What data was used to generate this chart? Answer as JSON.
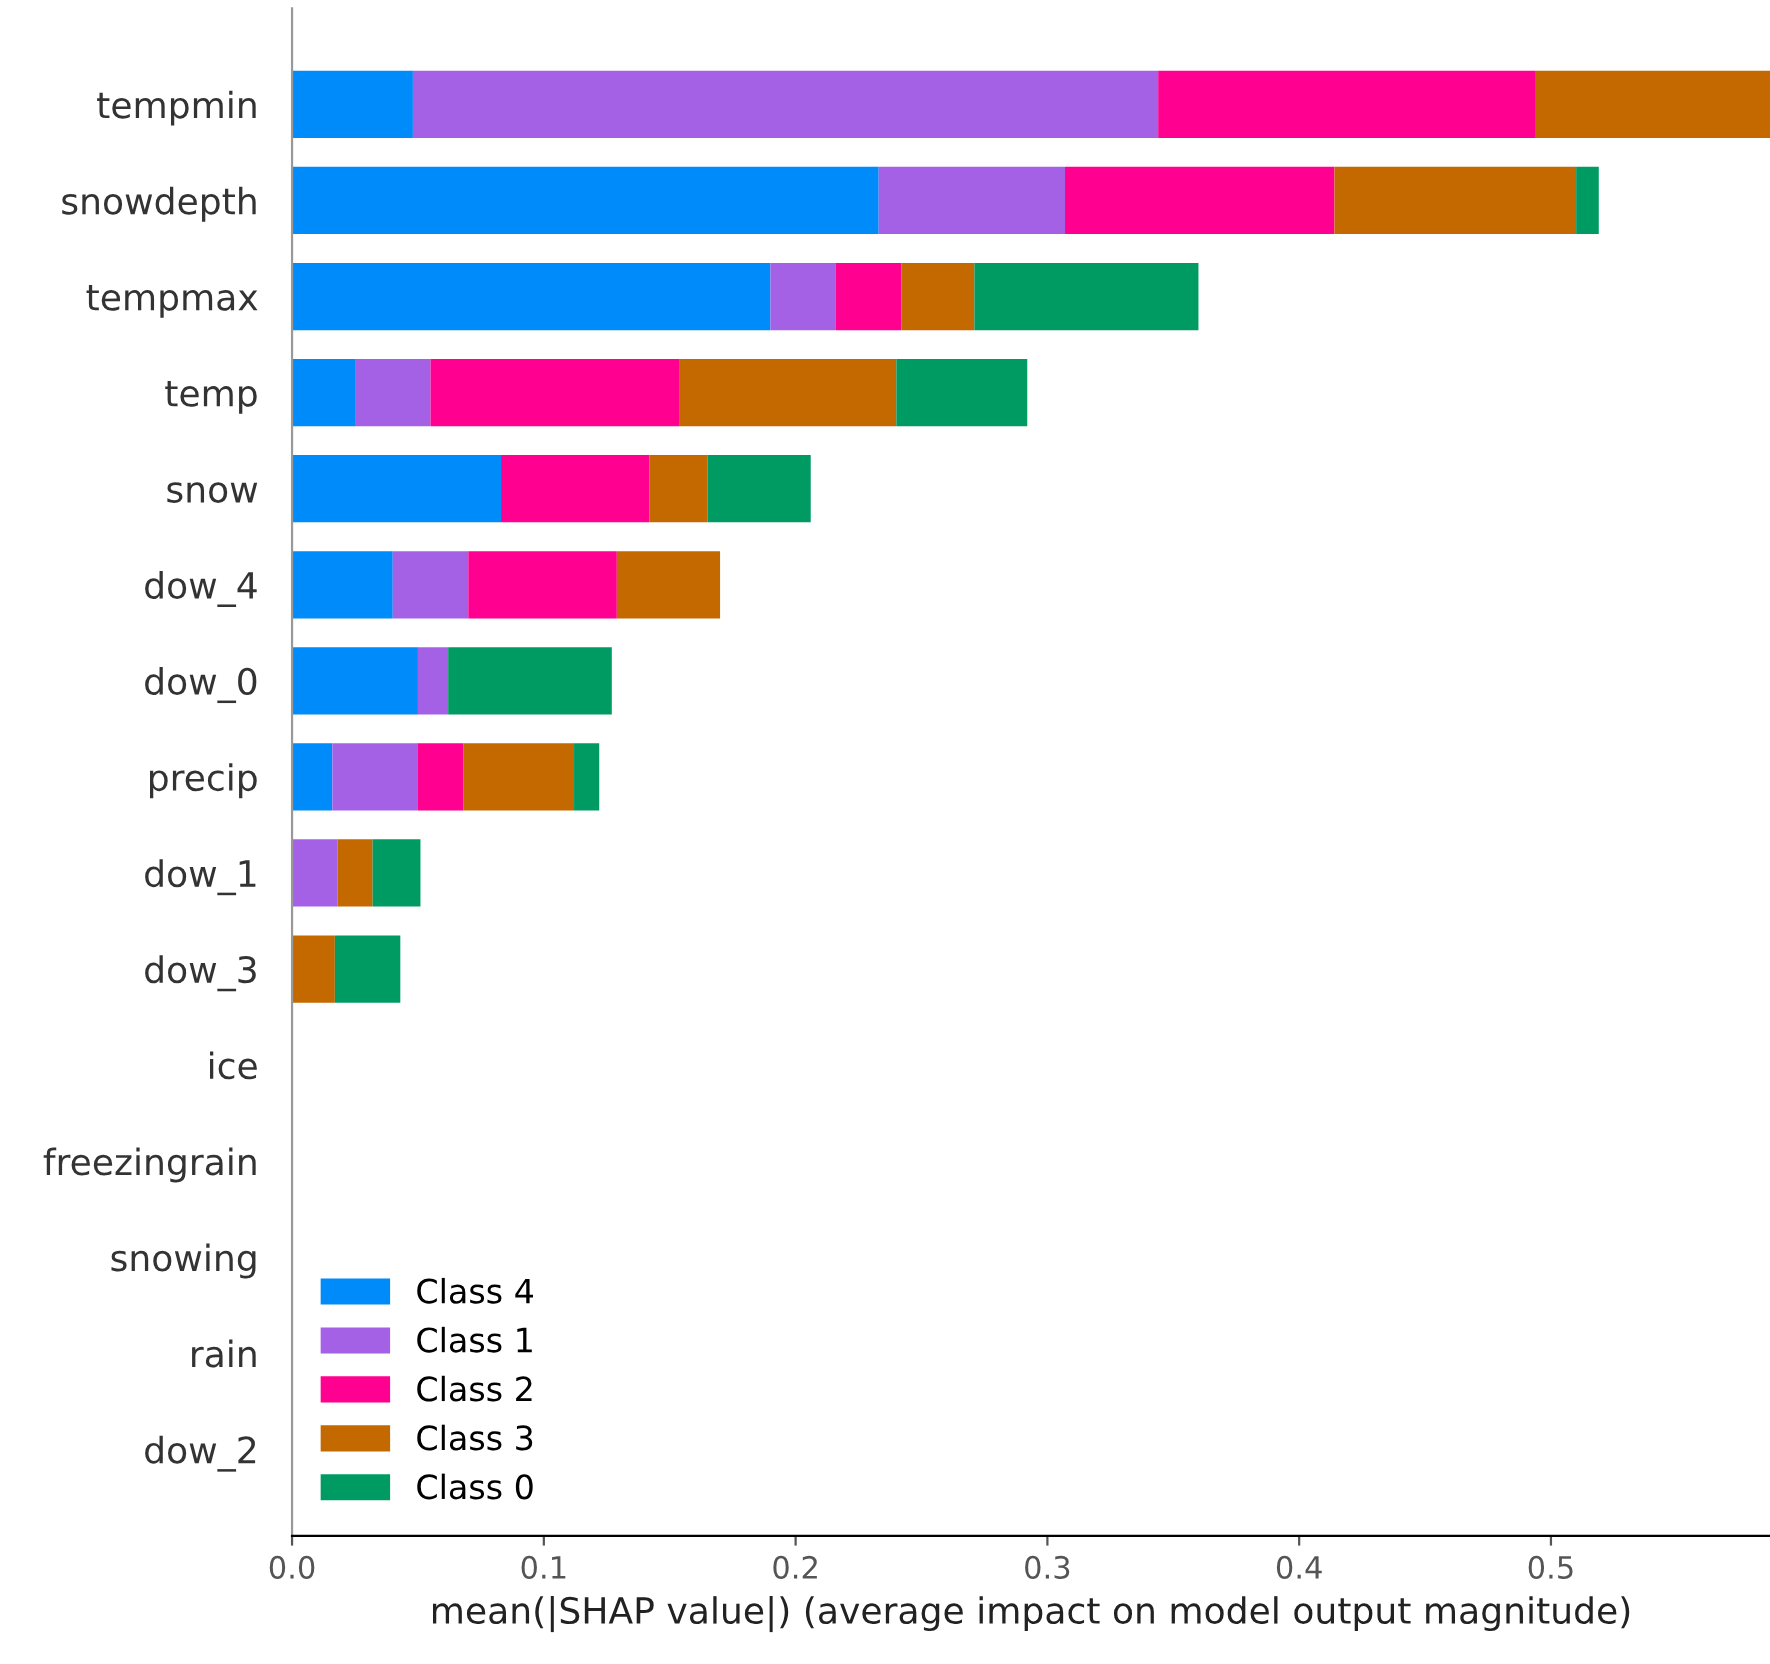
{
  "chart_data": {
    "type": "bar",
    "orientation": "horizontal",
    "stacked": true,
    "xlabel": "mean(|SHAP value|) (average impact on model output magnitude)",
    "categories": [
      "tempmin",
      "snowdepth",
      "tempmax",
      "temp",
      "snow",
      "dow_4",
      "dow_0",
      "precip",
      "dow_1",
      "dow_3",
      "ice",
      "freezingrain",
      "snowing",
      "rain",
      "dow_2"
    ],
    "series": [
      {
        "name": "Class 4",
        "color": "#008bfb",
        "values": [
          0.048,
          0.233,
          0.19,
          0.025,
          0.083,
          0.04,
          0.05,
          0.016,
          0,
          0,
          0,
          0,
          0,
          0,
          0
        ]
      },
      {
        "name": "Class 1",
        "color": "#a461e6",
        "values": [
          0.296,
          0.074,
          0.026,
          0.03,
          0,
          0.03,
          0.012,
          0.034,
          0.018,
          0,
          0,
          0,
          0,
          0,
          0
        ]
      },
      {
        "name": "Class 2",
        "color": "#ff0090",
        "values": [
          0.15,
          0.107,
          0.026,
          0.099,
          0.059,
          0.059,
          0,
          0.018,
          0,
          0,
          0,
          0,
          0,
          0,
          0
        ]
      },
      {
        "name": "Class 3",
        "color": "#c46900",
        "values": [
          0.093,
          0.096,
          0.029,
          0.086,
          0.023,
          0.041,
          0,
          0.044,
          0.014,
          0.017,
          0,
          0,
          0,
          0,
          0
        ]
      },
      {
        "name": "Class 0",
        "color": "#009b63",
        "values": [
          0,
          0.009,
          0.089,
          0.052,
          0.041,
          0,
          0.065,
          0.01,
          0.019,
          0.026,
          0,
          0,
          0,
          0,
          0
        ]
      }
    ],
    "xlim": [
      0,
      0.587
    ],
    "xticks": [
      {
        "value": 0,
        "label": "0.0"
      },
      {
        "value": 0.1,
        "label": "0.1"
      },
      {
        "value": 0.2,
        "label": "0.2"
      },
      {
        "value": 0.3,
        "label": "0.3"
      },
      {
        "value": 0.4,
        "label": "0.4"
      },
      {
        "value": 0.5,
        "label": "0.5"
      }
    ],
    "legend": "bottom left",
    "grid": false
  }
}
